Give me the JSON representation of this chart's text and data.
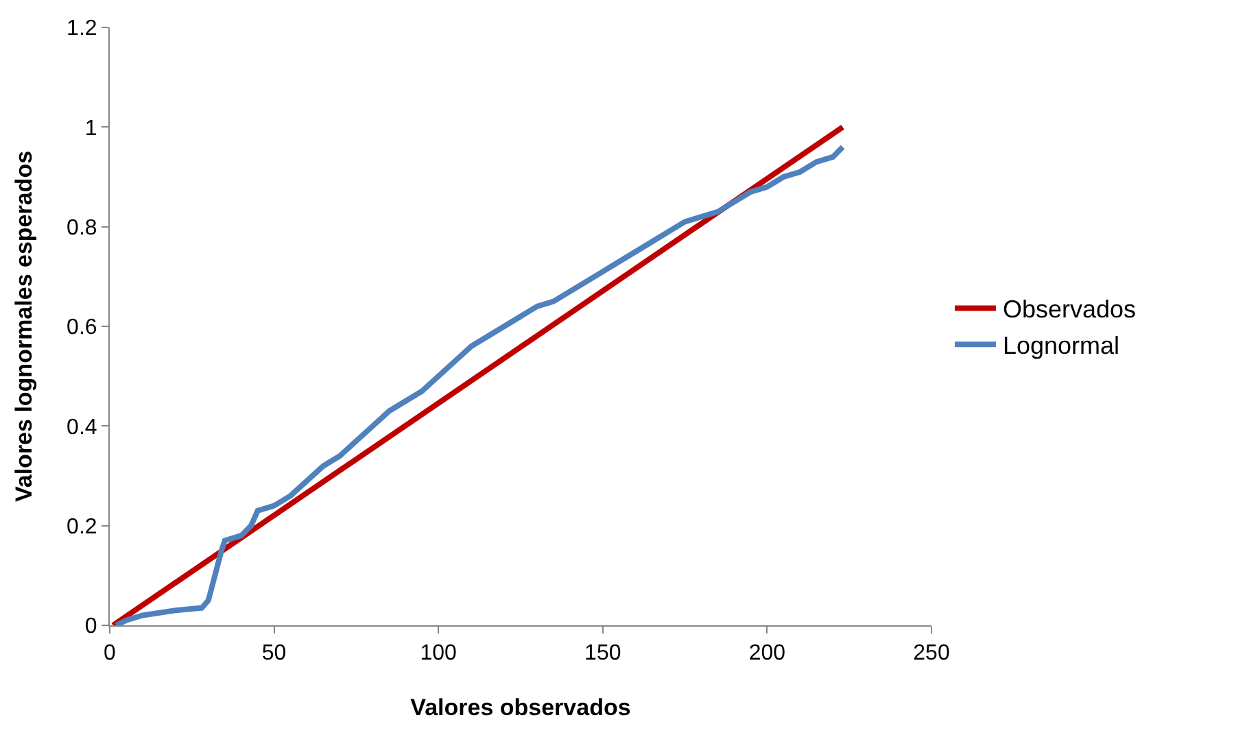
{
  "chart_data": {
    "type": "line",
    "xlabel": "Valores observados",
    "ylabel": "Valores lognormales esperados",
    "xlim": [
      0,
      250
    ],
    "xticks": [
      0,
      50,
      100,
      150,
      200,
      250
    ],
    "ylim": [
      0,
      1.2
    ],
    "yticks": [
      0,
      0.2,
      0.4,
      0.6,
      0.8,
      1,
      1.2
    ],
    "legend": "right",
    "marker": "none",
    "line_style": "solid",
    "series": [
      {
        "name": "Observados",
        "color": "#c00000",
        "x": [
          1,
          223
        ],
        "values": [
          0,
          1.0
        ]
      },
      {
        "name": "Lognormal",
        "color": "#4f81bd",
        "x": [
          2,
          5,
          10,
          20,
          28,
          30,
          32,
          34,
          35,
          40,
          43,
          45,
          50,
          55,
          60,
          65,
          70,
          75,
          80,
          85,
          90,
          95,
          100,
          105,
          110,
          115,
          120,
          125,
          130,
          135,
          140,
          145,
          150,
          155,
          160,
          165,
          170,
          175,
          180,
          185,
          190,
          195,
          200,
          205,
          210,
          215,
          220,
          223
        ],
        "values": [
          0,
          0.01,
          0.02,
          0.03,
          0.035,
          0.05,
          0.1,
          0.15,
          0.17,
          0.18,
          0.2,
          0.23,
          0.24,
          0.26,
          0.29,
          0.32,
          0.34,
          0.37,
          0.4,
          0.43,
          0.45,
          0.47,
          0.5,
          0.53,
          0.56,
          0.58,
          0.6,
          0.62,
          0.64,
          0.65,
          0.67,
          0.69,
          0.71,
          0.73,
          0.75,
          0.77,
          0.79,
          0.81,
          0.82,
          0.83,
          0.85,
          0.87,
          0.88,
          0.9,
          0.91,
          0.93,
          0.94,
          0.96
        ]
      }
    ]
  }
}
